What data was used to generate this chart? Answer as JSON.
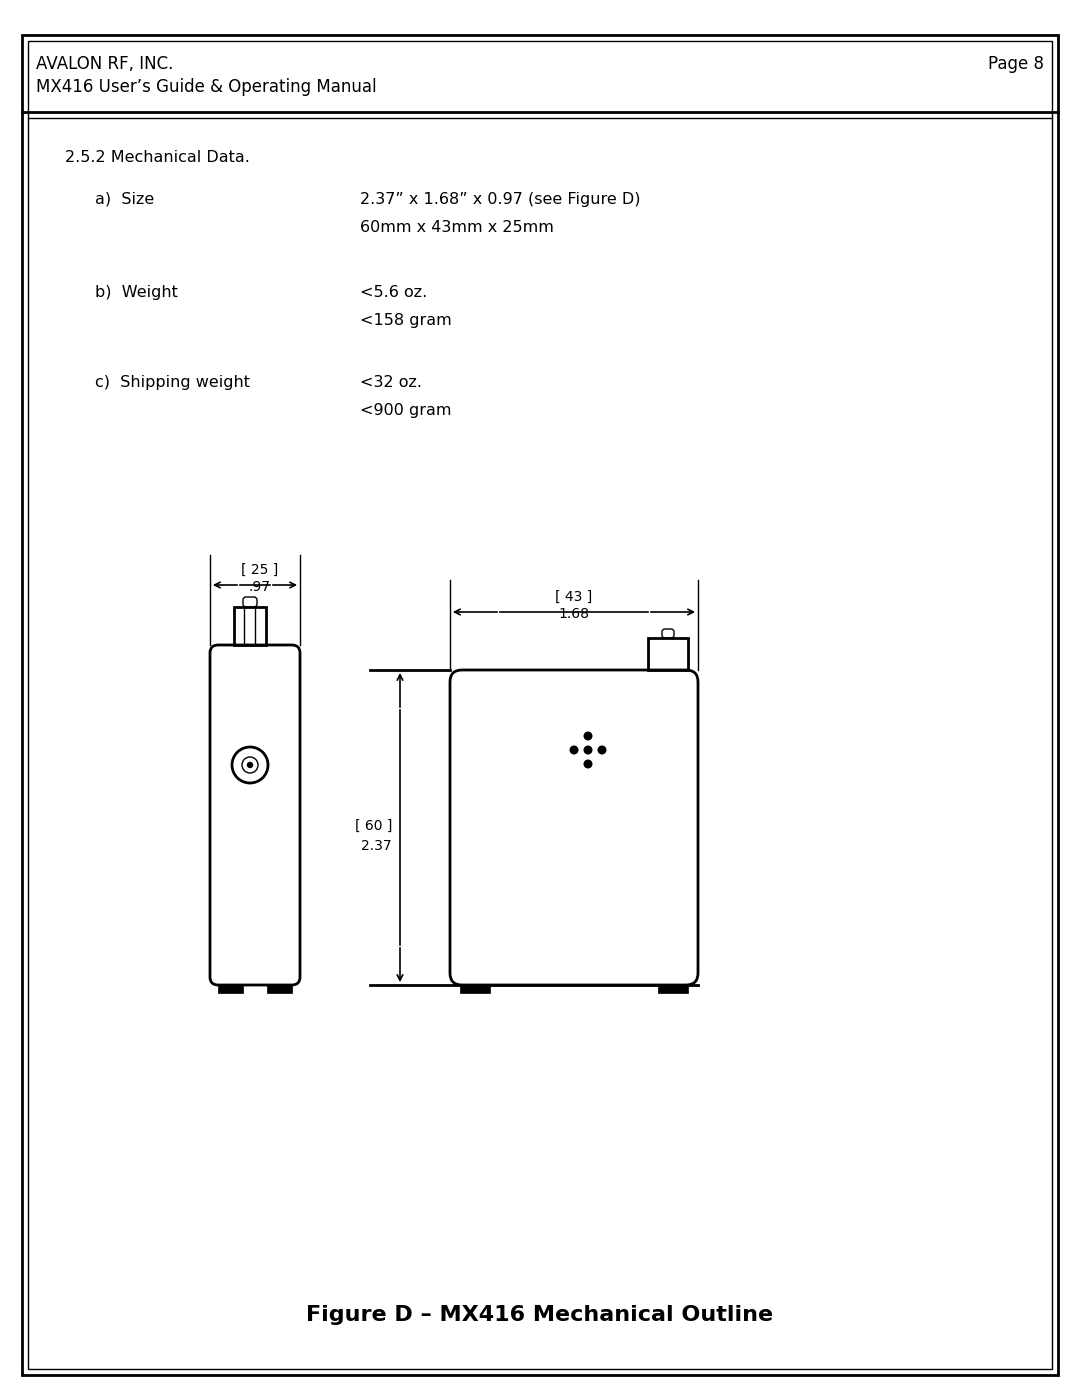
{
  "header_left_line1": "AVALON RF, INC.",
  "header_left_line2": "MX416 User’s Guide & Operating Manual",
  "header_right": "Page 8",
  "section_title": "2.5.2 Mechanical Data.",
  "items": [
    {
      "label": "a)  Size",
      "value_line1": "2.37” x 1.68” x 0.97 (see Figure D)",
      "value_line2": "60mm x 43mm x 25mm"
    },
    {
      "label": "b)  Weight",
      "value_line1": "<5.6 oz.",
      "value_line2": "<158 gram"
    },
    {
      "label": "c)  Shipping weight",
      "value_line1": "<32 oz.",
      "value_line2": "<900 gram"
    }
  ],
  "figure_caption": "Figure D – MX416 Mechanical Outline",
  "dim_width_mm": "[ 25 ]",
  "dim_width_in": ".97",
  "dim_height_mm": "[ 43 ]",
  "dim_height_in": "1.68",
  "dim_depth_mm": "[ 60 ]",
  "dim_depth_in": "2.37",
  "bg_color": "#ffffff",
  "border_color": "#000000",
  "text_color": "#000000",
  "line_color": "#000000",
  "lw_thick": 2.0,
  "lw_thin": 1.0,
  "lw_dim": 1.2,
  "font_header": 12,
  "font_body": 11.5,
  "font_dim": 10
}
